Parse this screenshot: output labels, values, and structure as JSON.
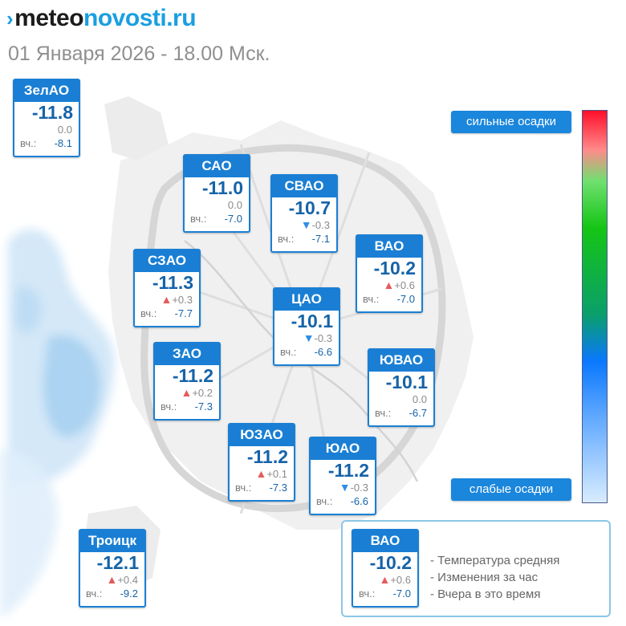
{
  "header": {
    "logo_mark": "›",
    "logo_part1": "meteo",
    "logo_part2": "novosti.ru",
    "subtitle": "01 Января 2026 - 18.00 Мск."
  },
  "yesterday_label": "вч.:",
  "districts": [
    {
      "name": "ЗелАО",
      "temp": "-11.8",
      "delta": "0.0",
      "trend": "none",
      "yesterday": "-8.1"
    },
    {
      "name": "САО",
      "temp": "-11.0",
      "delta": "0.0",
      "trend": "none",
      "yesterday": "-7.0"
    },
    {
      "name": "СВАО",
      "temp": "-10.7",
      "delta": "-0.3",
      "trend": "down",
      "yesterday": "-7.1"
    },
    {
      "name": "ВАО",
      "temp": "-10.2",
      "delta": "+0.6",
      "trend": "up",
      "yesterday": "-7.0"
    },
    {
      "name": "СЗАО",
      "temp": "-11.3",
      "delta": "+0.3",
      "trend": "up",
      "yesterday": "-7.7"
    },
    {
      "name": "ЦАО",
      "temp": "-10.1",
      "delta": "-0.3",
      "trend": "down",
      "yesterday": "-6.6"
    },
    {
      "name": "ЗАО",
      "temp": "-11.2",
      "delta": "+0.2",
      "trend": "up",
      "yesterday": "-7.3"
    },
    {
      "name": "ЮВАО",
      "temp": "-10.1",
      "delta": "0.0",
      "trend": "none",
      "yesterday": "-6.7"
    },
    {
      "name": "ЮЗАО",
      "temp": "-11.2",
      "delta": "+0.1",
      "trend": "up",
      "yesterday": "-7.3"
    },
    {
      "name": "ЮАО",
      "temp": "-11.2",
      "delta": "-0.3",
      "trend": "down",
      "yesterday": "-6.6"
    },
    {
      "name": "Троицк",
      "temp": "-12.1",
      "delta": "+0.4",
      "trend": "up",
      "yesterday": "-9.2"
    }
  ],
  "legend": {
    "high_label": "сильные осадки",
    "low_label": "слабые осадки"
  },
  "key": {
    "example": {
      "name": "ВАО",
      "temp": "-10.2",
      "delta": "+0.6",
      "trend": "up",
      "yesterday": "-7.0"
    },
    "line1": "- Температура средняя",
    "line2": "- Изменения за час",
    "line3": "- Вчера в это время"
  },
  "colors": {
    "brand_blue": "#1a9fe0",
    "card_blue": "#1a7fd4",
    "trend_up": "#e65a5a",
    "trend_down": "#2e8ee6"
  }
}
